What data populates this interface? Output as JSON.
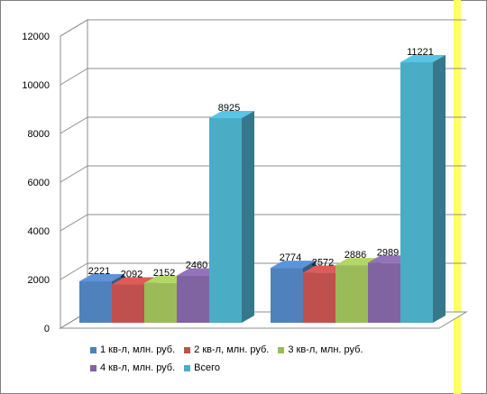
{
  "chart_data": {
    "type": "bar",
    "categories": [
      "",
      ""
    ],
    "series": [
      {
        "name": "1 кв-л, млн. руб.",
        "values": [
          2221,
          2774
        ],
        "color": "#4F81BD"
      },
      {
        "name": "2 кв-л, млн. руб.",
        "values": [
          2092,
          2572
        ],
        "color": "#C0504D"
      },
      {
        "name": "3 кв-л, млн. руб.",
        "values": [
          2152,
          2886
        ],
        "color": "#9BBB59"
      },
      {
        "name": "4 кв-л, млн. руб.",
        "values": [
          2460,
          2989
        ],
        "color": "#8064A2"
      },
      {
        "name": "Всего",
        "values": [
          8925,
          11221
        ],
        "color": "#4BACC6"
      }
    ],
    "value_labels": [
      [
        "2221",
        "2774"
      ],
      [
        "2092",
        "2572"
      ],
      [
        "2152",
        "2886"
      ],
      [
        "2460",
        "2989"
      ],
      [
        "8925",
        "11221"
      ]
    ],
    "ylim": [
      0,
      12000
    ],
    "yticks": [
      "0",
      "2000",
      "4000",
      "6000",
      "8000",
      "10000",
      "12000"
    ],
    "grid": true,
    "legend_position": "bottom",
    "title": "",
    "xlabel": "",
    "ylabel": ""
  }
}
